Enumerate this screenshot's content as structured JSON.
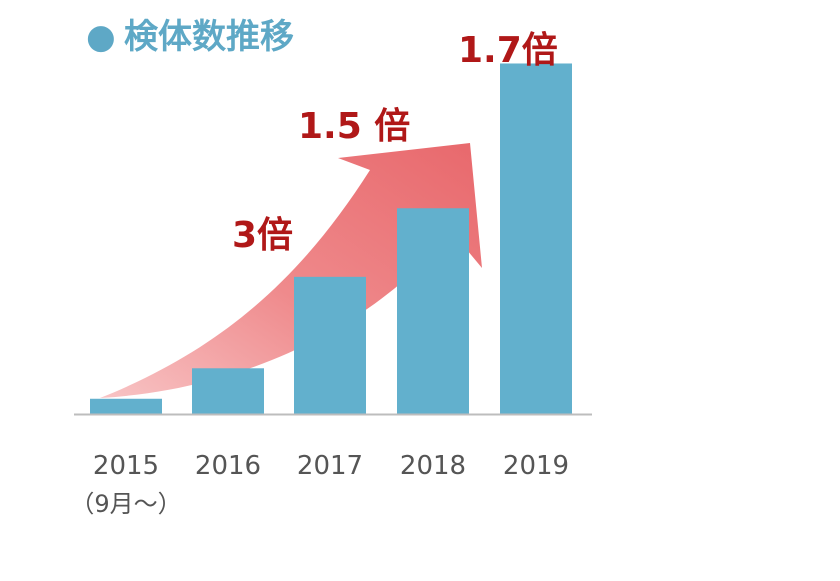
{
  "chart_data": {
    "type": "bar",
    "title": "検体数推移",
    "title_bullet": "●",
    "categories": [
      "2015",
      "2016",
      "2017",
      "2018",
      "2019"
    ],
    "category_note": "（9月～）",
    "values": [
      0.2,
      0.6,
      1.8,
      2.7,
      4.6
    ],
    "ylim": [
      0,
      5
    ],
    "grid": false,
    "annotations": [
      "3倍",
      "1.5 倍",
      "1.7倍"
    ],
    "colors": {
      "bar": "#62b0cd",
      "title": "#5ea8c6",
      "annotation": "#b01818",
      "arrow": "#ee7a7d",
      "axis": "#bdbdbd",
      "tick": "#555555"
    }
  }
}
